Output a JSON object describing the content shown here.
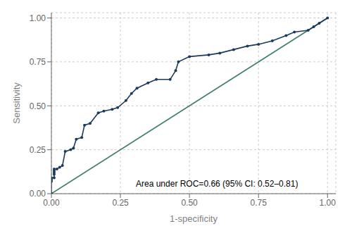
{
  "chart_data": {
    "type": "line",
    "xlabel": "1-specificity",
    "ylabel": "Sensitivity",
    "annotation": "Area under ROC=0.66 (95% CI: 0.52–0.81)",
    "series": [
      {
        "color": "#3d7d6a",
        "x": [
          0.0,
          1.0
        ],
        "values": [
          0.0,
          1.0
        ]
      },
      {
        "color": "#1b3a5c",
        "marker": "o",
        "x": [
          0.0,
          0.0,
          0.0,
          0.0,
          0.01,
          0.01,
          0.01,
          0.01,
          0.01,
          0.02,
          0.03,
          0.04,
          0.05,
          0.07,
          0.08,
          0.09,
          0.11,
          0.12,
          0.14,
          0.17,
          0.19,
          0.22,
          0.24,
          0.27,
          0.29,
          0.31,
          0.35,
          0.38,
          0.43,
          0.45,
          0.46,
          0.5,
          0.57,
          0.61,
          0.66,
          0.71,
          0.75,
          0.8,
          0.85,
          0.88,
          0.93,
          0.95,
          0.97,
          1.0
        ],
        "values": [
          0.0,
          0.07,
          0.08,
          0.09,
          0.09,
          0.11,
          0.12,
          0.13,
          0.14,
          0.14,
          0.15,
          0.16,
          0.24,
          0.25,
          0.26,
          0.31,
          0.32,
          0.39,
          0.4,
          0.46,
          0.47,
          0.48,
          0.49,
          0.53,
          0.57,
          0.6,
          0.63,
          0.65,
          0.65,
          0.7,
          0.75,
          0.78,
          0.79,
          0.8,
          0.82,
          0.84,
          0.85,
          0.87,
          0.9,
          0.92,
          0.93,
          0.95,
          0.97,
          1.0
        ]
      }
    ],
    "xlim": [
      0.0,
      1.03
    ],
    "ylim": [
      0.0,
      1.03
    ],
    "xticks": [
      {
        "value": 0.0,
        "label": "0.00"
      },
      {
        "value": 0.25,
        "label": "0.25"
      },
      {
        "value": 0.5,
        "label": "0.50"
      },
      {
        "value": 0.75,
        "label": "0.75"
      },
      {
        "value": 1.0,
        "label": "1.00"
      }
    ],
    "yticks": [
      {
        "value": 0.0,
        "label": "0.00"
      },
      {
        "value": 0.25,
        "label": "0.25"
      },
      {
        "value": 0.5,
        "label": "0.50"
      },
      {
        "value": 0.75,
        "label": "0.75"
      },
      {
        "value": 1.0,
        "label": "1.00"
      }
    ],
    "grid": true
  }
}
